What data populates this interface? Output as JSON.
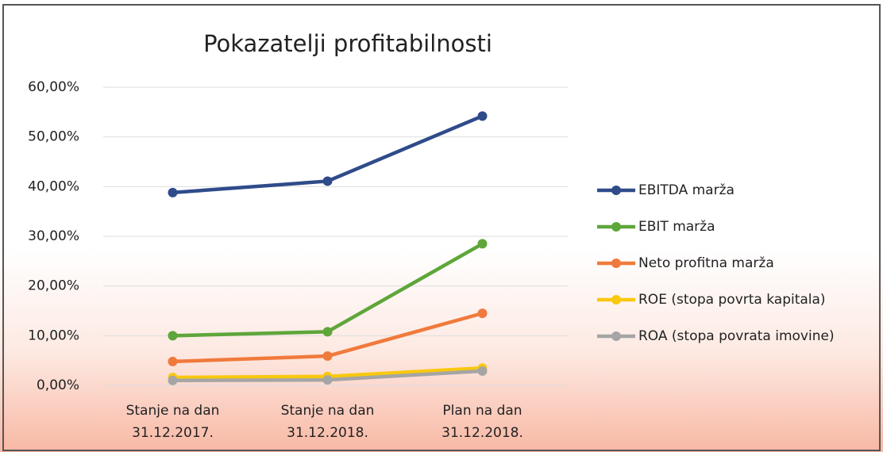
{
  "chart_data": {
    "type": "line",
    "title": "Pokazatelji profitabilnosti",
    "categories": [
      "Stanje na dan\n31.12.2017.",
      "Stanje na dan\n31.12.2018.",
      "Plan na dan\n31.12.2018."
    ],
    "series": [
      {
        "name": "EBITDA marža",
        "color": "#2f4b8a",
        "values": [
          38.8,
          41.1,
          54.2
        ]
      },
      {
        "name": "EBIT marža",
        "color": "#5ea63a",
        "values": [
          10.0,
          10.8,
          28.5
        ]
      },
      {
        "name": "Neto profitna marža",
        "color": "#f07a3c",
        "values": [
          4.8,
          5.9,
          14.5
        ]
      },
      {
        "name": "ROE (stopa povrta kapitala)",
        "color": "#f9c80e",
        "values": [
          1.6,
          1.8,
          3.5
        ]
      },
      {
        "name": "ROA (stopa povrata imovine)",
        "color": "#a5a5a5",
        "values": [
          1.0,
          1.1,
          2.9
        ]
      }
    ],
    "ylim": [
      0,
      60
    ],
    "yticks": [
      {
        "value": 0,
        "label": "0,00%"
      },
      {
        "value": 10,
        "label": "10,00%"
      },
      {
        "value": 20,
        "label": "20,00%"
      },
      {
        "value": 30,
        "label": "30,00%"
      },
      {
        "value": 40,
        "label": "40,00%"
      },
      {
        "value": 50,
        "label": "50,00%"
      },
      {
        "value": 60,
        "label": "60,00%"
      }
    ],
    "grid": true,
    "legend": "right"
  }
}
